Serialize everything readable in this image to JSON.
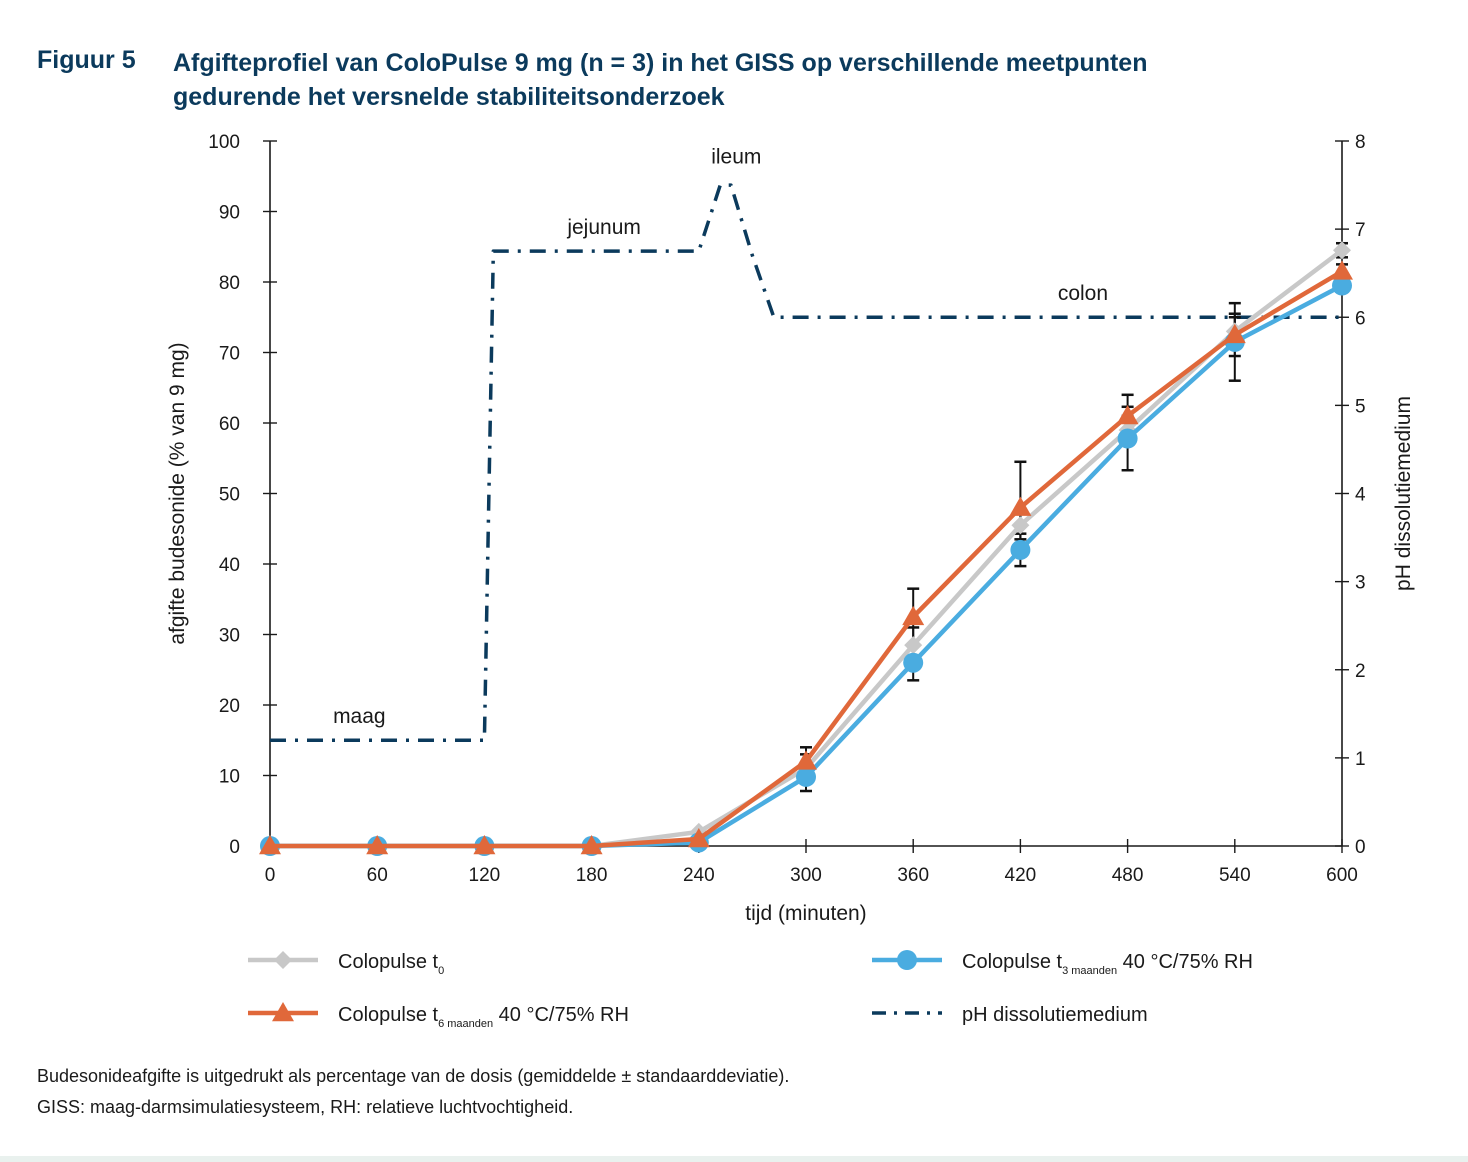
{
  "figure": {
    "number": "Figuur 5",
    "title": "Afgifteprofiel van ColoPulse 9 mg (n = 3) in het GISS op verschillende meetpunten gedurende het versnelde stabiliteitsonderzoek"
  },
  "notes": [
    "Budesonideafgifte is uitgedrukt als percentage van de dosis (gemiddelde ± standaarddeviatie).",
    "GISS: maag-darmsimulatiesysteem, RH: relatieve luchtvochtigheid."
  ],
  "chart_data": {
    "type": "line",
    "xlabel": "tijd (minuten)",
    "ylabel": "afgifte budesonide (% van 9 mg)",
    "y2label": "pH dissolutiemedium",
    "x": [
      0,
      60,
      120,
      180,
      240,
      300,
      360,
      420,
      480,
      540,
      600
    ],
    "xlim": [
      0,
      600
    ],
    "ylim": [
      0,
      100
    ],
    "y2lim": [
      0,
      8
    ],
    "xticks": [
      "0",
      "60",
      "120",
      "180",
      "240",
      "300",
      "360",
      "420",
      "480",
      "540",
      "600"
    ],
    "yticks": [
      "0",
      "10",
      "20",
      "30",
      "40",
      "50",
      "60",
      "70",
      "80",
      "90",
      "100"
    ],
    "y2ticks": [
      "0",
      "1",
      "2",
      "3",
      "4",
      "5",
      "6",
      "7",
      "8"
    ],
    "grid": false,
    "legend_position": "bottom",
    "series": [
      {
        "name": "Colopulse t",
        "subscript": "0",
        "suffix": "",
        "color": "#c8c8c8",
        "marker": "diamond",
        "values": [
          0,
          0,
          0,
          0,
          2,
          11,
          28.5,
          45.5,
          59,
          73,
          84.5
        ],
        "err": [
          0,
          0,
          0,
          0,
          0,
          2,
          2.5,
          2,
          2,
          2,
          1
        ]
      },
      {
        "name": "Colopulse t",
        "subscript": "3 maanden",
        "suffix": "40 °C/75% RH",
        "color": "#4aace0",
        "marker": "circle",
        "values": [
          0,
          0,
          0,
          0,
          0.5,
          9.8,
          26,
          42,
          57.8,
          71.5,
          79.5
        ],
        "err": [
          0,
          0,
          0,
          0,
          0,
          2,
          2.5,
          2.3,
          4.5,
          5.5,
          0
        ]
      },
      {
        "name": "Colopulse t",
        "subscript": "6 maanden",
        "suffix": "40 °C/75% RH",
        "color": "#e0683a",
        "marker": "triangle",
        "values": [
          0,
          0,
          0,
          0,
          1,
          12,
          32.5,
          48,
          61,
          72.5,
          81.5
        ],
        "err": [
          0,
          0,
          0,
          0,
          0,
          2,
          4,
          6.5,
          3,
          3,
          1
        ]
      }
    ],
    "ph_series": {
      "name": "pH dissolutiemedium",
      "color": "#0b3a5c",
      "axis": "right",
      "x": [
        0,
        120,
        125,
        240,
        252,
        258,
        270,
        282,
        600
      ],
      "values": [
        1.2,
        1.2,
        6.75,
        6.75,
        7.5,
        7.5,
        6.7,
        6.0,
        6.0
      ],
      "regions": [
        {
          "label": "maag",
          "x": 50,
          "ph": 1.35
        },
        {
          "label": "jejunum",
          "x": 187,
          "ph": 6.9
        },
        {
          "label": "ileum",
          "x": 261,
          "ph": 7.7
        },
        {
          "label": "colon",
          "x": 455,
          "ph": 6.15
        }
      ]
    }
  }
}
